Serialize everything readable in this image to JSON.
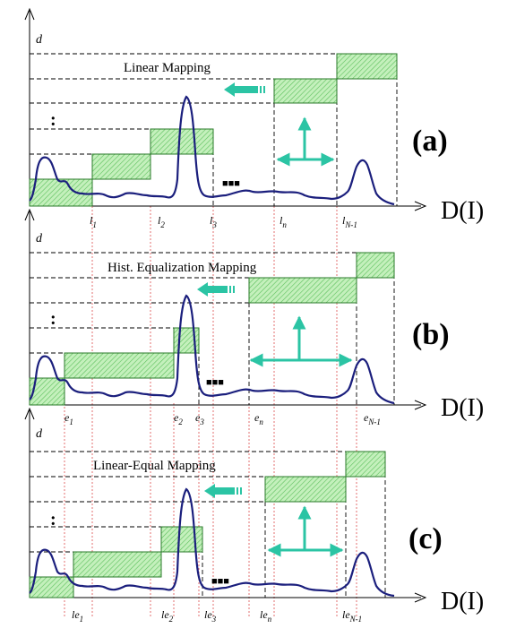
{
  "axis": {
    "x_name": "D(I)",
    "y_name": "d"
  },
  "panels": [
    {
      "id": "a",
      "tag": "(a)",
      "title": "Linear Mapping",
      "ticks": [
        {
          "base": "l",
          "sub": "1"
        },
        {
          "base": "l",
          "sub": "2"
        },
        {
          "base": "l",
          "sub": "3"
        },
        {
          "base": "l",
          "sub": "n"
        },
        {
          "base": "l",
          "sub": "N-1"
        }
      ]
    },
    {
      "id": "b",
      "tag": "(b)",
      "title": "Hist. Equalization  Mapping",
      "ticks": [
        {
          "base": "e",
          "sub": "1"
        },
        {
          "base": "e",
          "sub": "2"
        },
        {
          "base": "e",
          "sub": "3"
        },
        {
          "base": "e",
          "sub": "n"
        },
        {
          "base": "e",
          "sub": "N-1"
        }
      ]
    },
    {
      "id": "c",
      "tag": "(c)",
      "title": "Linear-Equal  Mapping",
      "ticks": [
        {
          "base": "le",
          "sub": "1"
        },
        {
          "base": "le",
          "sub": "2"
        },
        {
          "base": "le",
          "sub": "3"
        },
        {
          "base": "le",
          "sub": "n"
        },
        {
          "base": "le",
          "sub": "N-1"
        }
      ]
    }
  ],
  "symbols": {
    "vertical_dots": ":",
    "horizontal_dots": "■■■"
  },
  "colors": {
    "curve": "#1b1f7d",
    "step_fill": "#b8ecb0",
    "arrow": "#2bc4a4",
    "guide_red": "#e06060"
  }
}
